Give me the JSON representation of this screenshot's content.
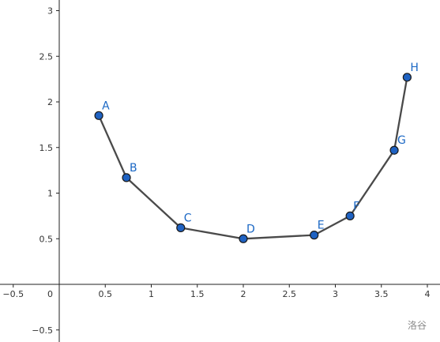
{
  "chart_data": {
    "type": "line",
    "title": "",
    "xlabel": "",
    "ylabel": "",
    "xlim": [
      -0.65,
      4.15
    ],
    "ylim": [
      -0.65,
      3.1
    ],
    "grid": false,
    "x_ticks": [
      -0.5,
      0.5,
      1,
      1.5,
      2,
      2.5,
      3,
      3.5,
      4
    ],
    "y_ticks": [
      -0.5,
      0.5,
      1,
      1.5,
      2,
      2.5,
      3
    ],
    "origin_label": "0",
    "points": [
      {
        "label": "A",
        "x": 0.43,
        "y": 1.85
      },
      {
        "label": "B",
        "x": 0.73,
        "y": 1.17
      },
      {
        "label": "C",
        "x": 1.32,
        "y": 0.62
      },
      {
        "label": "D",
        "x": 2.0,
        "y": 0.5
      },
      {
        "label": "E",
        "x": 2.77,
        "y": 0.54
      },
      {
        "label": "F",
        "x": 3.16,
        "y": 0.75
      },
      {
        "label": "G",
        "x": 3.64,
        "y": 1.47
      },
      {
        "label": "H",
        "x": 3.78,
        "y": 2.27
      }
    ],
    "line_color": "#4a4a4a",
    "point_color": "#1f62c2",
    "label_color": "#1a67c4"
  },
  "watermark": "洛谷"
}
